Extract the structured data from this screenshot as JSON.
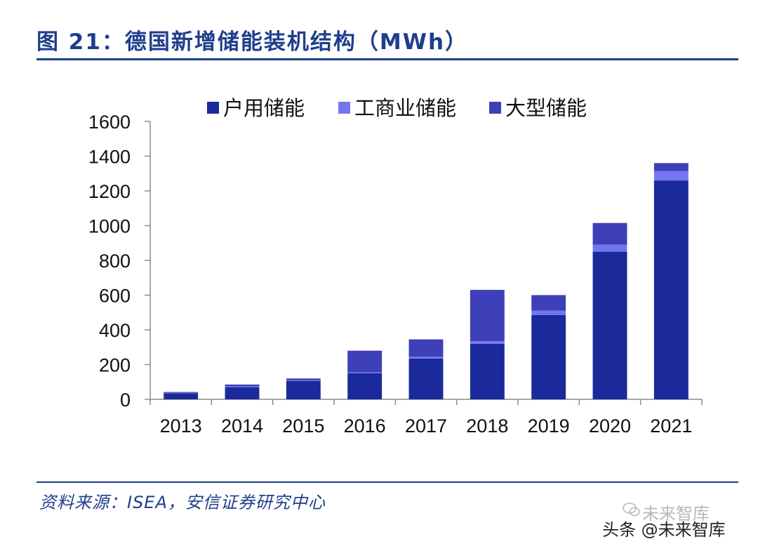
{
  "title": "图 21：德国新增储能装机结构（MWh）",
  "source": "资料来源：ISEA，安信证券研究中心",
  "watermark": {
    "text": "头条 @未来智库",
    "shadow_text": "未来智库"
  },
  "colors": {
    "brand": "#1f3e8c",
    "axis": "#8c8c8c"
  },
  "chart_data": {
    "type": "bar",
    "stacked": true,
    "title": "德国新增储能装机结构（MWh）",
    "xlabel": "",
    "ylabel": "",
    "ylim": [
      0,
      1600
    ],
    "yticks": [
      0,
      200,
      400,
      600,
      800,
      1000,
      1200,
      1400,
      1600
    ],
    "categories": [
      "2013",
      "2014",
      "2015",
      "2016",
      "2017",
      "2018",
      "2019",
      "2020",
      "2021"
    ],
    "legend_position": "top",
    "grid": false,
    "series": [
      {
        "name": "户用储能",
        "color": "#1a2a9b",
        "values": [
          35,
          70,
          105,
          150,
          235,
          320,
          485,
          850,
          1260
        ]
      },
      {
        "name": "工商业储能",
        "color": "#7476ef",
        "values": [
          2,
          5,
          5,
          5,
          10,
          15,
          25,
          40,
          55
        ]
      },
      {
        "name": "大型储能",
        "color": "#3d40b8",
        "values": [
          5,
          10,
          10,
          125,
          100,
          295,
          90,
          125,
          45
        ]
      }
    ]
  }
}
